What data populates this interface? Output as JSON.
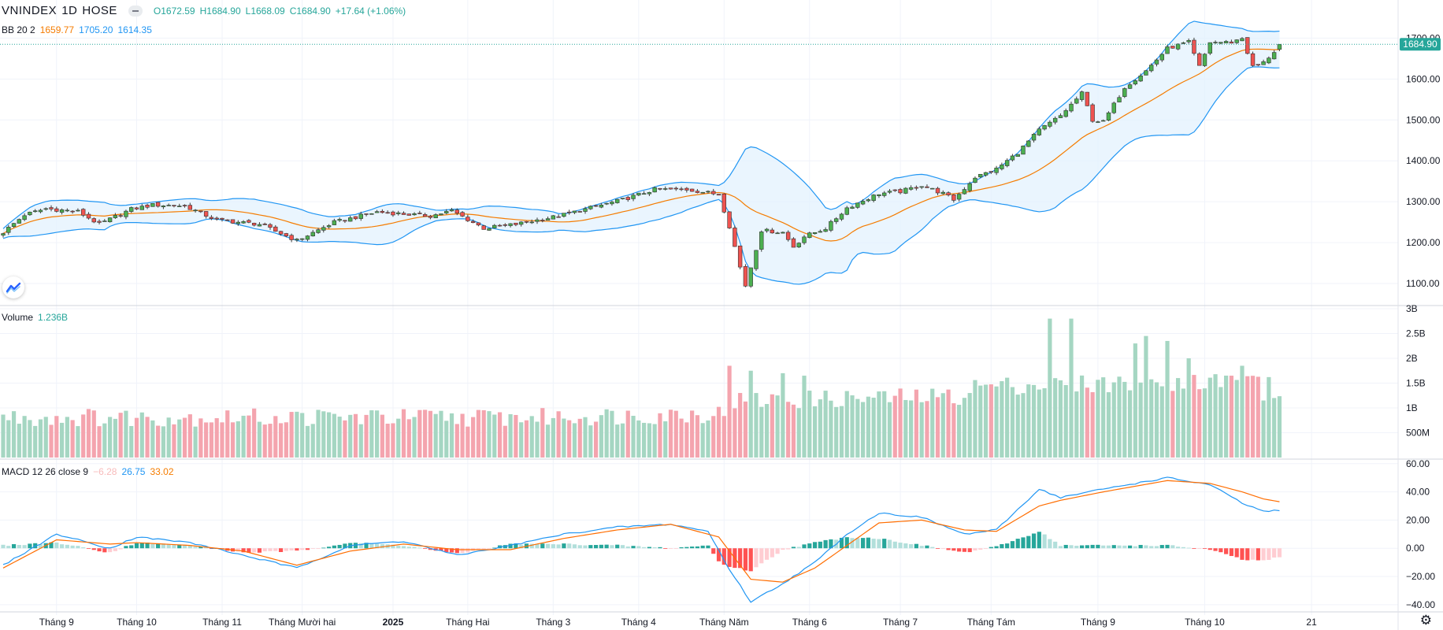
{
  "header": {
    "symbol": "VNINDEX",
    "interval": "1D",
    "exchange": "HOSE",
    "open": "O1672.59",
    "high": "H1684.90",
    "low": "L1668.09",
    "close": "C1684.90",
    "change": "+17.64 (+1.06%)"
  },
  "bb": {
    "label": "BB 20 2",
    "basis": "1659.77",
    "upper": "1705.20",
    "lower": "1614.35"
  },
  "volume": {
    "label": "Volume",
    "value": "1.236B"
  },
  "macd": {
    "label": "MACD 12 26 close 9",
    "hist": "−6.28",
    "macd": "26.75",
    "signal": "33.02"
  },
  "price_tag": "1684.90",
  "colors": {
    "up": "#26a69a",
    "down": "#ef5350",
    "vol_up": "#a5d6c2",
    "vol_down": "#f4a4ae",
    "bb_basis": "#f57c00",
    "bb_band": "#2196f3",
    "bb_fill": "#e3f2fd"
  },
  "icons": {
    "logo": "tradingview-logo-icon",
    "settings": "gear-icon"
  },
  "chart_data": [
    {
      "type": "candlestick",
      "title": "VNINDEX 1D HOSE",
      "ylim": [
        1050,
        1720
      ],
      "y_ticks": [
        "1700.00",
        "1600.00",
        "1500.00",
        "1400.00",
        "1300.00",
        "1200.00",
        "1100.00"
      ],
      "x_ticks": [
        "Tháng 9",
        "Tháng 10",
        "Tháng 11",
        "Tháng Mười hai",
        "2025",
        "Tháng Hai",
        "Tháng 3",
        "Tháng 4",
        "Tháng Năm",
        "Tháng 6",
        "Tháng 7",
        "Tháng Tám",
        "Tháng 9",
        "Tháng 10",
        "21"
      ],
      "close_anchors": [
        [
          0,
          1225
        ],
        [
          4,
          1268
        ],
        [
          8,
          1283
        ],
        [
          14,
          1276
        ],
        [
          18,
          1245
        ],
        [
          24,
          1282
        ],
        [
          28,
          1292
        ],
        [
          34,
          1290
        ],
        [
          40,
          1255
        ],
        [
          48,
          1245
        ],
        [
          55,
          1205
        ],
        [
          62,
          1250
        ],
        [
          66,
          1262
        ],
        [
          70,
          1275
        ],
        [
          80,
          1265
        ],
        [
          84,
          1278
        ],
        [
          90,
          1235
        ],
        [
          96,
          1245
        ],
        [
          104,
          1265
        ],
        [
          110,
          1285
        ],
        [
          116,
          1305
        ],
        [
          122,
          1330
        ],
        [
          128,
          1330
        ],
        [
          134,
          1318
        ],
        [
          136,
          1240
        ],
        [
          138,
          1140
        ],
        [
          139,
          1095
        ],
        [
          140,
          1140
        ],
        [
          142,
          1230
        ],
        [
          146,
          1225
        ],
        [
          148,
          1190
        ],
        [
          150,
          1215
        ],
        [
          154,
          1235
        ],
        [
          158,
          1285
        ],
        [
          164,
          1320
        ],
        [
          168,
          1325
        ],
        [
          172,
          1340
        ],
        [
          176,
          1320
        ],
        [
          178,
          1305
        ],
        [
          182,
          1360
        ],
        [
          186,
          1380
        ],
        [
          190,
          1420
        ],
        [
          194,
          1475
        ],
        [
          198,
          1510
        ],
        [
          202,
          1565
        ],
        [
          204,
          1500
        ],
        [
          206,
          1495
        ],
        [
          210,
          1580
        ],
        [
          214,
          1620
        ],
        [
          218,
          1675
        ],
        [
          222,
          1690
        ],
        [
          224,
          1630
        ],
        [
          226,
          1690
        ],
        [
          230,
          1690
        ],
        [
          232,
          1700
        ],
        [
          234,
          1630
        ],
        [
          236,
          1640
        ],
        [
          238,
          1667
        ],
        [
          239,
          1685
        ]
      ],
      "bb": {
        "basis": 1659.77,
        "upper": 1705.2,
        "lower": 1614.35,
        "length": 20,
        "mult": 2
      },
      "last": {
        "open": 1672.59,
        "high": 1684.9,
        "low": 1668.09,
        "close": 1684.9
      }
    },
    {
      "type": "bar",
      "title": "Volume",
      "y_ticks": [
        "3B",
        "2.5B",
        "2B",
        "1.5B",
        "1B",
        "500M"
      ],
      "ylim": [
        0,
        3000000000
      ],
      "last_value": 1236000000,
      "spikes": [
        [
          136,
          1850000000
        ],
        [
          140,
          1750000000
        ],
        [
          146,
          1700000000
        ],
        [
          150,
          1650000000
        ],
        [
          196,
          2800000000
        ],
        [
          200,
          2800000000
        ],
        [
          212,
          2300000000
        ],
        [
          214,
          2450000000
        ],
        [
          218,
          2350000000
        ],
        [
          222,
          2000000000
        ],
        [
          230,
          1650000000
        ],
        [
          232,
          1850000000
        ],
        [
          236,
          1150000000
        ],
        [
          238,
          1200000000
        ],
        [
          239,
          1236000000
        ]
      ]
    },
    {
      "type": "line",
      "title": "MACD 12 26 close 9",
      "y_ticks": [
        "60.00",
        "40.00",
        "20.00",
        "0.00",
        "−20.00",
        "−40.00"
      ],
      "ylim": [
        -44,
        61
      ],
      "series": [
        {
          "name": "MACD",
          "anchors": [
            [
              0,
              -12
            ],
            [
              10,
              10
            ],
            [
              20,
              0
            ],
            [
              25,
              8
            ],
            [
              35,
              4
            ],
            [
              45,
              -5
            ],
            [
              55,
              -14
            ],
            [
              65,
              2
            ],
            [
              75,
              5
            ],
            [
              85,
              -5
            ],
            [
              95,
              2
            ],
            [
              105,
              10
            ],
            [
              115,
              15
            ],
            [
              125,
              17
            ],
            [
              132,
              12
            ],
            [
              136,
              -15
            ],
            [
              140,
              -38
            ],
            [
              146,
              -25
            ],
            [
              152,
              -10
            ],
            [
              158,
              10
            ],
            [
              164,
              25
            ],
            [
              172,
              22
            ],
            [
              180,
              10
            ],
            [
              186,
              13
            ],
            [
              194,
              42
            ],
            [
              198,
              36
            ],
            [
              206,
              42
            ],
            [
              218,
              50
            ],
            [
              226,
              45
            ],
            [
              232,
              32
            ],
            [
              236,
              26
            ],
            [
              239,
              26.75
            ]
          ]
        },
        {
          "name": "Signal",
          "anchors": [
            [
              0,
              -14
            ],
            [
              10,
              6
            ],
            [
              20,
              3
            ],
            [
              25,
              4
            ],
            [
              35,
              2
            ],
            [
              45,
              -2
            ],
            [
              55,
              -12
            ],
            [
              65,
              -2
            ],
            [
              75,
              3
            ],
            [
              85,
              -1
            ],
            [
              95,
              -1
            ],
            [
              105,
              7
            ],
            [
              115,
              13
            ],
            [
              125,
              17
            ],
            [
              134,
              8
            ],
            [
              140,
              -22
            ],
            [
              146,
              -24
            ],
            [
              152,
              -14
            ],
            [
              158,
              2
            ],
            [
              164,
              18
            ],
            [
              172,
              20
            ],
            [
              180,
              13
            ],
            [
              186,
              12
            ],
            [
              194,
              30
            ],
            [
              198,
              34
            ],
            [
              206,
              40
            ],
            [
              218,
              48
            ],
            [
              226,
              46
            ],
            [
              232,
              40
            ],
            [
              236,
              35
            ],
            [
              239,
              33.02
            ]
          ]
        }
      ]
    }
  ]
}
